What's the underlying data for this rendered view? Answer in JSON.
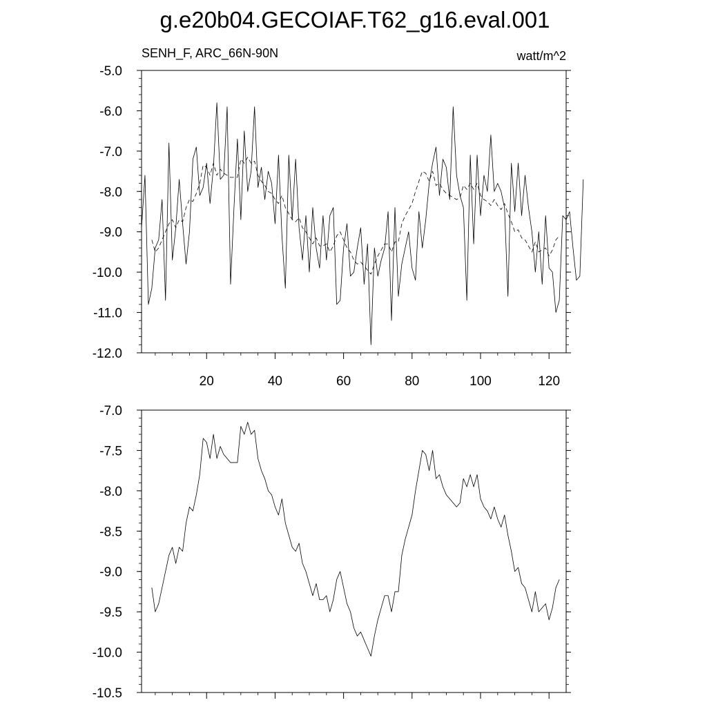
{
  "title": "g.e20b04.GECOIAF.T62_g16.eval.001",
  "chart_data": [
    {
      "type": "line",
      "left_label": "SENH_F, ARC_66N-90N",
      "right_label": "watt/m^2",
      "xlim": [
        1,
        125
      ],
      "ylim": [
        -12.0,
        -5.0
      ],
      "x_ticks": [
        20,
        40,
        60,
        80,
        100,
        120
      ],
      "x_tick_labels": [
        "20",
        "40",
        "60",
        "80",
        "100",
        "120"
      ],
      "y_ticks": [
        -12,
        -11,
        -10,
        -9,
        -8,
        -7,
        -6,
        -5
      ],
      "y_tick_labels": [
        "-12.0",
        "-11.0",
        "-10.0",
        "-9.0",
        "-8.0",
        "-7.0",
        "-6.0",
        "-5.0"
      ],
      "series": [
        {
          "style": "solid",
          "x_start": 1,
          "values": [
            -8.9,
            -7.6,
            -10.8,
            -10.4,
            -9.4,
            -9.2,
            -8.2,
            -10.7,
            -6.8,
            -9.7,
            -8.9,
            -7.7,
            -8.8,
            -9.8,
            -9.0,
            -7.2,
            -6.9,
            -8.1,
            -7.9,
            -7.3,
            -8.3,
            -7.4,
            -5.8,
            -7.7,
            -7.6,
            -5.9,
            -10.3,
            -8.4,
            -6.7,
            -8.7,
            -6.5,
            -8.0,
            -7.5,
            -5.9,
            -7.9,
            -7.4,
            -8.2,
            -7.5,
            -7.8,
            -8.8,
            -7.1,
            -9.1,
            -10.4,
            -7.1,
            -8.7,
            -7.2,
            -8.9,
            -9.7,
            -8.6,
            -10.0,
            -8.4,
            -9.4,
            -9.9,
            -8.6,
            -9.7,
            -8.6,
            -8.4,
            -10.8,
            -10.7,
            -9.4,
            -8.8,
            -10.1,
            -10.0,
            -9.4,
            -8.9,
            -10.3,
            -9.3,
            -11.8,
            -9.4,
            -10.1,
            -9.7,
            -9.4,
            -8.5,
            -11.2,
            -8.4,
            -10.6,
            -9.8,
            -9.4,
            -9.0,
            -9.9,
            -10.2,
            -8.5,
            -9.4,
            -8.7,
            -7.8,
            -7.3,
            -6.9,
            -8.1,
            -7.2,
            -7.4,
            -8.2,
            -5.9,
            -7.6,
            -8.1,
            -8.4,
            -10.7,
            -7.1,
            -9.3,
            -7.1,
            -8.6,
            -7.6,
            -8.0,
            -6.6,
            -8.0,
            -7.8,
            -8.0,
            -8.4,
            -10.6,
            -7.3,
            -8.5,
            -7.3,
            -8.6,
            -7.6,
            -8.4,
            -9.0,
            -10.0,
            -9.0,
            -10.3,
            -8.6,
            -9.9,
            -10.0,
            -11.0,
            -10.7,
            -8.6,
            -8.7,
            -8.5,
            -9.4,
            -10.2,
            -10.1,
            -7.7
          ]
        },
        {
          "style": "dashed",
          "x_start": 4,
          "values": [
            -9.2,
            -9.5,
            -9.4,
            -9.2,
            -9.0,
            -8.8,
            -8.7,
            -8.9,
            -8.7,
            -8.75,
            -8.4,
            -8.2,
            -8.25,
            -8.05,
            -7.8,
            -7.35,
            -7.4,
            -7.6,
            -7.3,
            -7.6,
            -7.45,
            -7.55,
            -7.6,
            -7.65,
            -7.65,
            -7.65,
            -7.2,
            -7.3,
            -7.15,
            -7.3,
            -7.25,
            -7.6,
            -7.75,
            -7.85,
            -8.0,
            -8.05,
            -8.2,
            -8.3,
            -8.1,
            -8.4,
            -8.55,
            -8.7,
            -8.75,
            -8.65,
            -8.9,
            -9.0,
            -9.15,
            -9.3,
            -9.15,
            -9.35,
            -9.35,
            -9.3,
            -9.5,
            -9.35,
            -9.1,
            -9.0,
            -9.2,
            -9.4,
            -9.5,
            -9.7,
            -9.8,
            -9.75,
            -9.85,
            -9.95,
            -10.05,
            -9.8,
            -9.6,
            -9.45,
            -9.3,
            -9.3,
            -9.5,
            -9.25,
            -9.25,
            -8.8,
            -8.6,
            -8.45,
            -8.3,
            -8.0,
            -7.75,
            -7.5,
            -7.55,
            -7.75,
            -7.5,
            -7.85,
            -7.8,
            -7.95,
            -8.05,
            -8.1,
            -8.15,
            -8.2,
            -8.15,
            -7.85,
            -7.95,
            -7.8,
            -7.95,
            -7.8,
            -8.1,
            -8.2,
            -8.25,
            -8.35,
            -8.2,
            -8.35,
            -8.45,
            -8.3,
            -8.55,
            -8.75,
            -9.0,
            -8.95,
            -9.15,
            -9.2,
            -9.35,
            -9.5,
            -9.25,
            -9.5,
            -9.45,
            -9.4,
            -9.6,
            -9.45,
            -9.2,
            -9.1
          ]
        }
      ]
    },
    {
      "type": "line",
      "xlim": [
        1,
        125
      ],
      "ylim": [
        -10.5,
        -7.0
      ],
      "x_ticks": [
        20,
        40,
        60,
        80,
        100,
        120
      ],
      "y_ticks": [
        -10.5,
        -10,
        -9.5,
        -9,
        -8.5,
        -8,
        -7.5,
        -7
      ],
      "y_tick_labels": [
        "-10.5",
        "-10.0",
        "-9.5",
        "-9.0",
        "-8.5",
        "-8.0",
        "-7.5",
        "-7.0"
      ],
      "series": [
        {
          "style": "solid",
          "x_start": 4,
          "values": [
            -9.2,
            -9.5,
            -9.4,
            -9.2,
            -9.0,
            -8.8,
            -8.7,
            -8.9,
            -8.7,
            -8.75,
            -8.4,
            -8.2,
            -8.25,
            -8.05,
            -7.8,
            -7.35,
            -7.4,
            -7.6,
            -7.3,
            -7.6,
            -7.45,
            -7.55,
            -7.6,
            -7.65,
            -7.65,
            -7.65,
            -7.2,
            -7.3,
            -7.15,
            -7.3,
            -7.25,
            -7.6,
            -7.75,
            -7.85,
            -8.0,
            -8.05,
            -8.2,
            -8.3,
            -8.1,
            -8.4,
            -8.55,
            -8.7,
            -8.75,
            -8.65,
            -8.9,
            -9.0,
            -9.15,
            -9.3,
            -9.15,
            -9.35,
            -9.35,
            -9.3,
            -9.5,
            -9.35,
            -9.1,
            -9.0,
            -9.2,
            -9.4,
            -9.5,
            -9.7,
            -9.8,
            -9.75,
            -9.85,
            -9.95,
            -10.05,
            -9.8,
            -9.6,
            -9.45,
            -9.3,
            -9.3,
            -9.5,
            -9.25,
            -9.25,
            -8.8,
            -8.6,
            -8.45,
            -8.3,
            -8.0,
            -7.75,
            -7.5,
            -7.55,
            -7.75,
            -7.5,
            -7.85,
            -7.8,
            -7.95,
            -8.05,
            -8.1,
            -8.15,
            -8.2,
            -8.15,
            -7.85,
            -7.95,
            -7.8,
            -7.95,
            -7.8,
            -8.1,
            -8.2,
            -8.25,
            -8.35,
            -8.2,
            -8.35,
            -8.45,
            -8.3,
            -8.55,
            -8.75,
            -9.0,
            -8.95,
            -9.15,
            -9.2,
            -9.35,
            -9.5,
            -9.25,
            -9.5,
            -9.45,
            -9.4,
            -9.6,
            -9.45,
            -9.2,
            -9.1
          ]
        }
      ]
    }
  ]
}
